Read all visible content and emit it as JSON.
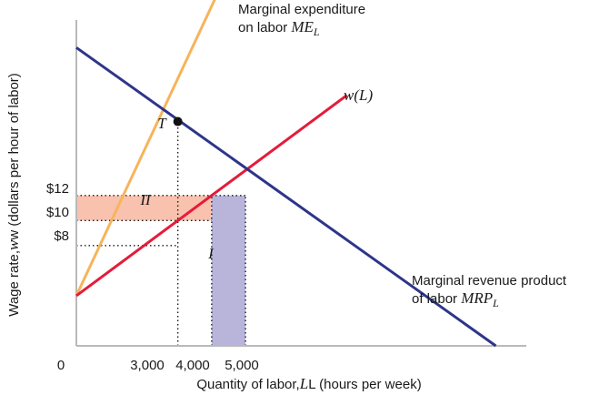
{
  "chart_data": {
    "type": "line",
    "xlabel": "Quantity of labor, L (hours per week)",
    "ylabel": "Wage rate, w (dollars per hour of labor)",
    "x_ticks": [
      "3,000",
      "4,000",
      "5,000"
    ],
    "x_origin_label": "0",
    "y_ticks": [
      "$12",
      "$10",
      "$8"
    ],
    "xlim": [
      0,
      13300
    ],
    "ylim": [
      0,
      26
    ],
    "series": [
      {
        "name": "Marginal expenditure on labor ME_L",
        "label_lines": [
          "Marginal expenditure",
          "on labor ME_L"
        ],
        "x": [
          0,
          4500
        ],
        "y": [
          4,
          30
        ],
        "color": "#f7b45a"
      },
      {
        "name": "w(L)",
        "label": "w(L)",
        "x": [
          0,
          8000
        ],
        "y": [
          4,
          20
        ],
        "color": "#e41c3a"
      },
      {
        "name": "Marginal revenue product of labor MRP_L",
        "label_lines": [
          "Marginal revenue product",
          "of labor MRP_L"
        ],
        "x": [
          0,
          12400
        ],
        "y": [
          23.8,
          0
        ],
        "color": "#2e3589"
      }
    ],
    "points": [
      {
        "label": "T",
        "x": 3000,
        "y": 17.9
      }
    ],
    "regions": [
      {
        "label": "II",
        "x": [
          0,
          4000
        ],
        "y": [
          10,
          12
        ],
        "color": "#f9c2ae"
      },
      {
        "label": "I",
        "x": [
          4000,
          5000
        ],
        "y": [
          0,
          12
        ],
        "color": "#b8b4da"
      }
    ],
    "guides": [
      {
        "x": [
          0,
          5000
        ],
        "y": 12
      },
      {
        "x": [
          0,
          4000
        ],
        "y": 10
      },
      {
        "x": [
          0,
          3000
        ],
        "y": 8
      },
      {
        "x": 3000,
        "y": [
          0,
          17.9
        ]
      },
      {
        "x": 4000,
        "y": [
          0,
          12
        ]
      },
      {
        "x": 5000,
        "y": [
          0,
          12
        ]
      }
    ]
  }
}
